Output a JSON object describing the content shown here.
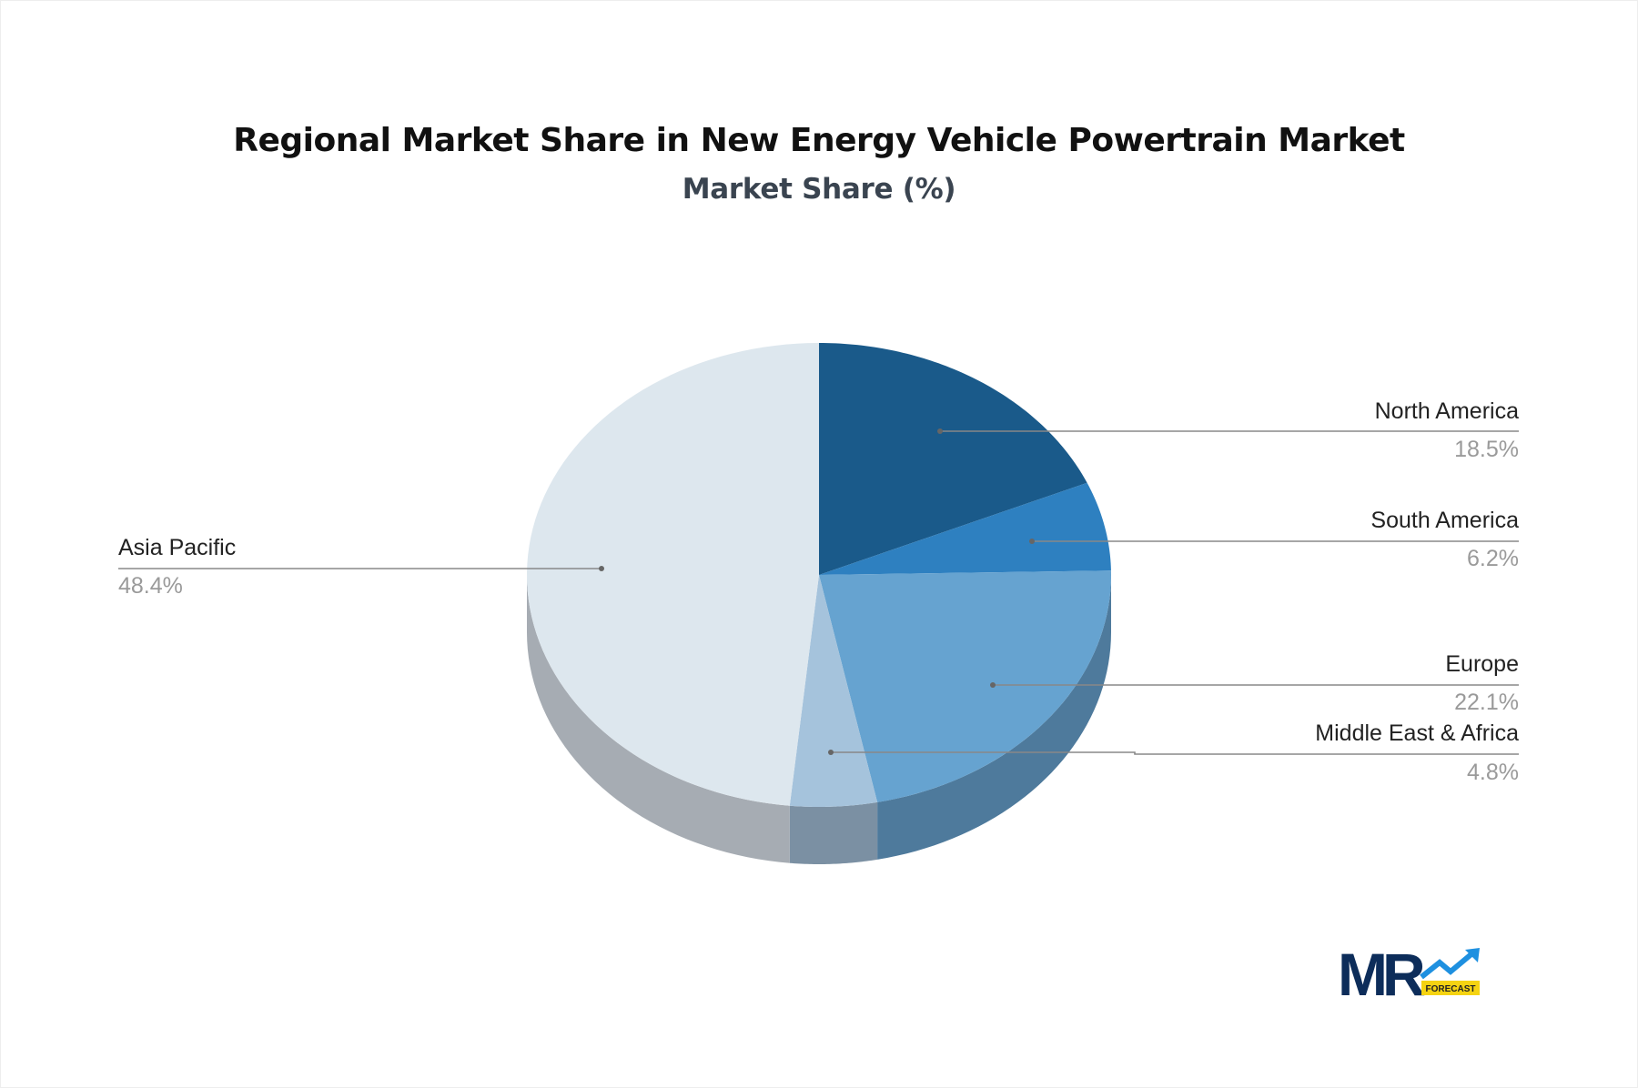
{
  "chart_data": {
    "type": "pie",
    "style": "3d",
    "title": "Regional Market Share in New Energy Vehicle Powertrain Market",
    "subtitle": "Market Share (%)",
    "slices": [
      {
        "label": "North America",
        "value": 18.5,
        "display": "18.5%",
        "color": "#1a5a8a",
        "side_color": "#134468"
      },
      {
        "label": "South America",
        "value": 6.2,
        "display": "6.2%",
        "color": "#2e80c0",
        "side_color": "#236090"
      },
      {
        "label": "Europe",
        "value": 22.1,
        "display": "22.1%",
        "color": "#66a3d0",
        "side_color": "#4e7a9c"
      },
      {
        "label": "Middle East & Africa",
        "value": 4.8,
        "display": "4.8%",
        "color": "#a5c3dc",
        "side_color": "#7b90a3"
      },
      {
        "label": "Asia Pacific",
        "value": 48.4,
        "display": "48.4%",
        "color": "#dde7ee",
        "side_color": "#a6acb3"
      }
    ]
  },
  "logo": {
    "text": "MR",
    "badge": "FORECAST",
    "colors": {
      "navy": "#0d2d5a",
      "blue": "#1e90e0",
      "yellow": "#f5d312"
    }
  }
}
